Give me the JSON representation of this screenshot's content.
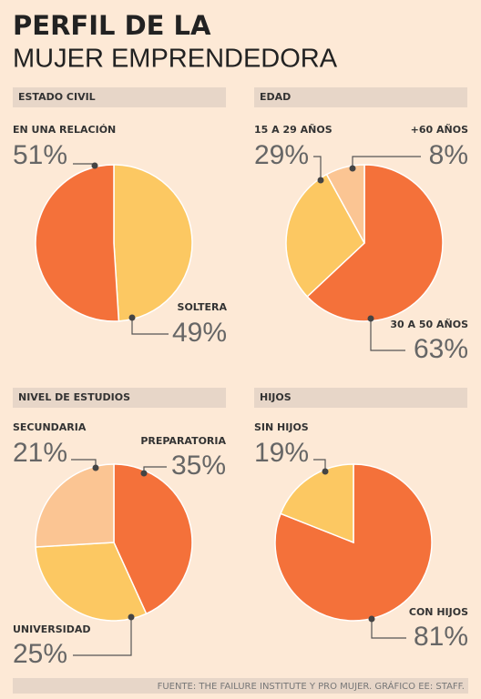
{
  "title": "PERFIL DE LA",
  "subtitle": "MUJER EMPRENDEDORA",
  "source": "FUENTE: THE FAILURE INSTITUTE Y PRO MUJER. GRÁFICO EE: STAFF.",
  "chart_data": [
    {
      "type": "pie",
      "title": "ESTADO CIVIL",
      "categories": [
        "SOLTERA",
        "EN UNA RELACIÓN"
      ],
      "values": [
        49,
        51
      ],
      "value_labels": [
        "49%",
        "51%"
      ],
      "colors": [
        "#fcc862",
        "#f4713a"
      ]
    },
    {
      "type": "pie",
      "title": "EDAD",
      "categories": [
        "30 A 50 AÑOS",
        "15 A 29 AÑOS",
        "+60 AÑOS"
      ],
      "values": [
        63,
        29,
        8
      ],
      "value_labels": [
        "63%",
        "29%",
        "8%"
      ],
      "colors": [
        "#f4713a",
        "#fcc862",
        "#fbc593"
      ]
    },
    {
      "type": "pie",
      "title": "NIVEL DE ESTUDIOS",
      "categories": [
        "PREPARATORIA",
        "UNIVERSIDAD",
        "SECUNDARIA"
      ],
      "values": [
        35,
        25,
        21
      ],
      "value_labels": [
        "35%",
        "25%",
        "21%"
      ],
      "colors": [
        "#f4713a",
        "#fcc862",
        "#fbc593"
      ]
    },
    {
      "type": "pie",
      "title": "HIJOS",
      "categories": [
        "CON HIJOS",
        "SIN HIJOS"
      ],
      "values": [
        81,
        19
      ],
      "value_labels": [
        "81%",
        "19%"
      ],
      "colors": [
        "#f4713a",
        "#fcc862"
      ]
    }
  ]
}
